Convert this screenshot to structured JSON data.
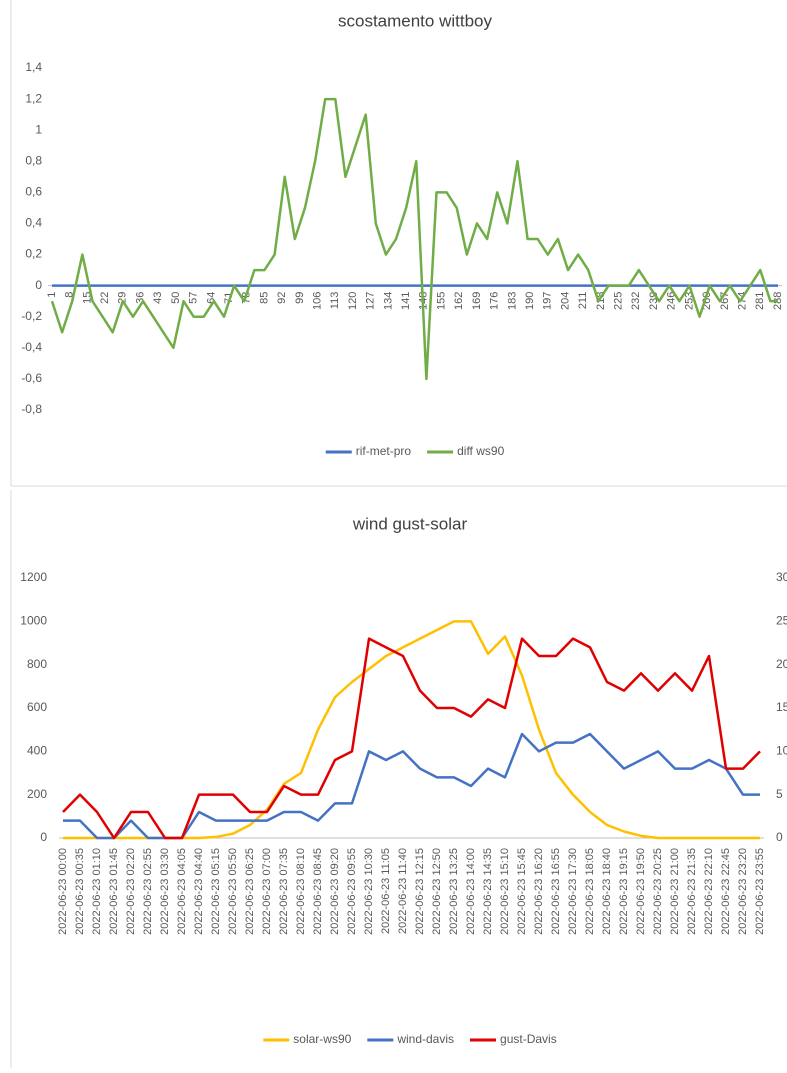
{
  "chart_data": [
    {
      "type": "line",
      "title": "scostamento wittboy",
      "x": [
        1,
        5,
        9,
        13,
        17,
        21,
        25,
        29,
        33,
        37,
        41,
        45,
        49,
        53,
        57,
        61,
        65,
        69,
        73,
        77,
        81,
        85,
        89,
        93,
        97,
        101,
        105,
        109,
        113,
        117,
        121,
        125,
        129,
        133,
        137,
        141,
        145,
        149,
        153,
        157,
        161,
        165,
        169,
        173,
        177,
        181,
        185,
        189,
        193,
        197,
        201,
        205,
        209,
        213,
        217,
        221,
        225,
        229,
        233,
        237,
        241,
        245,
        249,
        253,
        257,
        261,
        265,
        269,
        273,
        277,
        281,
        285,
        288
      ],
      "xlim": [
        1,
        288
      ],
      "xticks": [
        1,
        8,
        15,
        22,
        29,
        36,
        43,
        50,
        57,
        64,
        71,
        78,
        85,
        92,
        99,
        106,
        113,
        120,
        127,
        134,
        141,
        148,
        155,
        162,
        169,
        176,
        183,
        190,
        197,
        204,
        211,
        218,
        225,
        232,
        239,
        246,
        253,
        260,
        267,
        274,
        281,
        288
      ],
      "ylim": [
        -0.8,
        1.4
      ],
      "yticks": [
        {
          "value": 1.4,
          "label": "1,4"
        },
        {
          "value": 1.2,
          "label": "1,2"
        },
        1,
        {
          "value": 0.8,
          "label": "0,8"
        },
        {
          "value": 0.6,
          "label": "0,6"
        },
        {
          "value": 0.4,
          "label": "0,4"
        },
        {
          "value": 0.2,
          "label": "0,2"
        },
        0,
        {
          "value": -0.2,
          "label": "-0,2"
        },
        {
          "value": -0.4,
          "label": "-0,4"
        },
        {
          "value": -0.6,
          "label": "-0,6"
        },
        {
          "value": -0.8,
          "label": "-0,8"
        }
      ],
      "grid": false,
      "legend": "bottom",
      "series": [
        {
          "name": "rif-met-pro",
          "color": "#4472c4",
          "values": [
            0,
            0,
            0,
            0,
            0,
            0,
            0,
            0,
            0,
            0,
            0,
            0,
            0,
            0,
            0,
            0,
            0,
            0,
            0,
            0,
            0,
            0,
            0,
            0,
            0,
            0,
            0,
            0,
            0,
            0,
            0,
            0,
            0,
            0,
            0,
            0,
            0,
            0,
            0,
            0,
            0,
            0,
            0,
            0,
            0,
            0,
            0,
            0,
            0,
            0,
            0,
            0,
            0,
            0,
            0,
            0,
            0,
            0,
            0,
            0,
            0,
            0,
            0,
            0,
            0,
            0,
            0,
            0,
            0,
            0,
            0,
            0,
            0
          ]
        },
        {
          "name": "diff ws90",
          "color": "#70ad47",
          "values": [
            -0.1,
            -0.3,
            -0.1,
            0.2,
            -0.1,
            -0.2,
            -0.3,
            -0.1,
            -0.2,
            -0.1,
            -0.2,
            -0.3,
            -0.4,
            -0.1,
            -0.2,
            -0.2,
            -0.1,
            -0.2,
            0,
            -0.1,
            0.1,
            0.1,
            0.2,
            0.7,
            0.3,
            0.5,
            0.8,
            1.2,
            1.2,
            0.7,
            0.9,
            1.1,
            0.4,
            0.2,
            0.3,
            0.5,
            0.8,
            -0.6,
            0.6,
            0.6,
            0.5,
            0.2,
            0.4,
            0.3,
            0.6,
            0.4,
            0.8,
            0.3,
            0.3,
            0.2,
            0.3,
            0.1,
            0.2,
            0.1,
            -0.1,
            0,
            0,
            0,
            0.1,
            0,
            -0.1,
            0,
            -0.1,
            0,
            -0.2,
            0,
            -0.1,
            0,
            -0.1,
            0,
            0.1,
            -0.1,
            -0.1
          ]
        }
      ]
    },
    {
      "type": "line",
      "title": "wind gust-solar",
      "x": [
        "2022-06-23 00:00",
        "2022-06-23 00:35",
        "2022-06-23 01:10",
        "2022-06-23 01:45",
        "2022-06-23 02:20",
        "2022-06-23 02:55",
        "2022-06-23 03:30",
        "2022-06-23 04:05",
        "2022-06-23 04:40",
        "2022-06-23 05:15",
        "2022-06-23 05:50",
        "2022-06-23 06:25",
        "2022-06-23 07:00",
        "2022-06-23 07:35",
        "2022-06-23 08:10",
        "2022-06-23 08:45",
        "2022-06-23 09:20",
        "2022-06-23 09:55",
        "2022-06-23 10:30",
        "2022-06-23 11:05",
        "2022-06-23 11:40",
        "2022-06-23 12:15",
        "2022-06-23 12:50",
        "2022-06-23 13:25",
        "2022-06-23 14:00",
        "2022-06-23 14:35",
        "2022-06-23 15:10",
        "2022-06-23 15:45",
        "2022-06-23 16:20",
        "2022-06-23 16:55",
        "2022-06-23 17:30",
        "2022-06-23 18:05",
        "2022-06-23 18:40",
        "2022-06-23 19:15",
        "2022-06-23 19:50",
        "2022-06-23 20:25",
        "2022-06-23 21:00",
        "2022-06-23 21:35",
        "2022-06-23 22:10",
        "2022-06-23 22:45",
        "2022-06-23 23:20",
        "2022-06-23 23:55"
      ],
      "ylim": [
        0,
        1200
      ],
      "yticks": [
        0,
        200,
        400,
        600,
        800,
        1000,
        1200
      ],
      "y2lim": [
        0,
        30
      ],
      "y2ticks": [
        0,
        5,
        10,
        15,
        20,
        25,
        30
      ],
      "grid": false,
      "legend": "bottom",
      "series": [
        {
          "name": "solar-ws90",
          "color": "#ffc000",
          "values": [
            0,
            0,
            0,
            0,
            0,
            0,
            0,
            0,
            0,
            5,
            20,
            60,
            130,
            250,
            300,
            500,
            650,
            720,
            780,
            840,
            880,
            920,
            960,
            1000,
            1000,
            850,
            930,
            750,
            500,
            300,
            200,
            120,
            60,
            30,
            10,
            0,
            0,
            0,
            0,
            0,
            0,
            0
          ]
        },
        {
          "name": "wind-davis",
          "color": "#4472c4",
          "axis": "y2",
          "values": [
            2,
            2,
            0,
            0,
            2,
            0,
            0,
            0,
            3,
            2,
            2,
            2,
            2,
            3,
            3,
            2,
            4,
            4,
            10,
            9,
            10,
            8,
            7,
            7,
            6,
            8,
            7,
            12,
            10,
            11,
            11,
            12,
            10,
            8,
            9,
            10,
            8,
            8,
            9,
            8,
            5,
            5
          ]
        },
        {
          "name": "gust-Davis",
          "color": "#e00000",
          "axis": "y2",
          "values": [
            3,
            5,
            3,
            0,
            3,
            3,
            0,
            0,
            5,
            5,
            5,
            3,
            3,
            6,
            5,
            5,
            9,
            10,
            23,
            22,
            21,
            17,
            15,
            15,
            14,
            16,
            15,
            23,
            21,
            21,
            23,
            22,
            18,
            17,
            19,
            17,
            19,
            17,
            21,
            8,
            8,
            10
          ]
        }
      ]
    }
  ]
}
